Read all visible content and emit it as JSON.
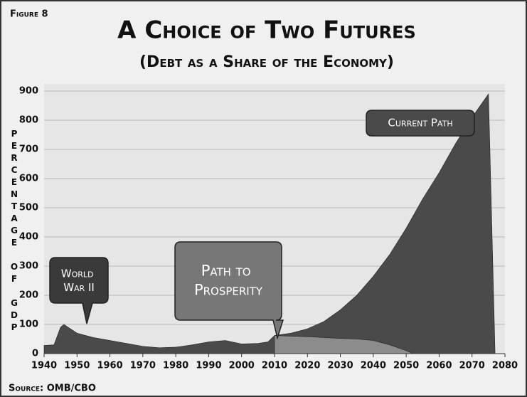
{
  "chart_data": {
    "type": "area",
    "figure_label": "Figure 8",
    "title": "A Choice of Two Futures",
    "subtitle": "(Debt as a Share of the Economy)",
    "y_label": "Percentage of GDP",
    "source": "Source: OMB/CBO",
    "annotations": [
      "World War II"
    ],
    "xlim": [
      1940,
      2080
    ],
    "xticks": [
      1940,
      1950,
      1960,
      1970,
      1980,
      1990,
      2000,
      2010,
      2020,
      2030,
      2040,
      2050,
      2060,
      2070,
      2080
    ],
    "ylim": [
      0,
      900
    ],
    "yticks": [
      0,
      100,
      200,
      300,
      400,
      500,
      600,
      700,
      800,
      900
    ],
    "grid": true,
    "series": [
      {
        "name": "Current Path",
        "color": "#4a4a4a",
        "x": [
          1940,
          1943,
          1945,
          1946,
          1948,
          1950,
          1955,
          1960,
          1965,
          1970,
          1975,
          1980,
          1985,
          1990,
          1995,
          2000,
          2005,
          2008,
          2010,
          2015,
          2020,
          2025,
          2030,
          2035,
          2040,
          2045,
          2050,
          2055,
          2060,
          2065,
          2070,
          2075,
          2077
        ],
        "values": [
          28,
          30,
          90,
          100,
          85,
          70,
          55,
          45,
          35,
          25,
          20,
          22,
          30,
          40,
          45,
          33,
          35,
          40,
          62,
          70,
          85,
          110,
          150,
          200,
          265,
          340,
          430,
          530,
          620,
          720,
          810,
          890,
          0
        ]
      },
      {
        "name": "Path to Prosperity",
        "color": "#8c8c8c",
        "x": [
          2010,
          2015,
          2020,
          2025,
          2030,
          2035,
          2040,
          2045,
          2050,
          2052
        ],
        "values": [
          62,
          60,
          58,
          55,
          52,
          50,
          45,
          30,
          10,
          0
        ]
      }
    ]
  }
}
